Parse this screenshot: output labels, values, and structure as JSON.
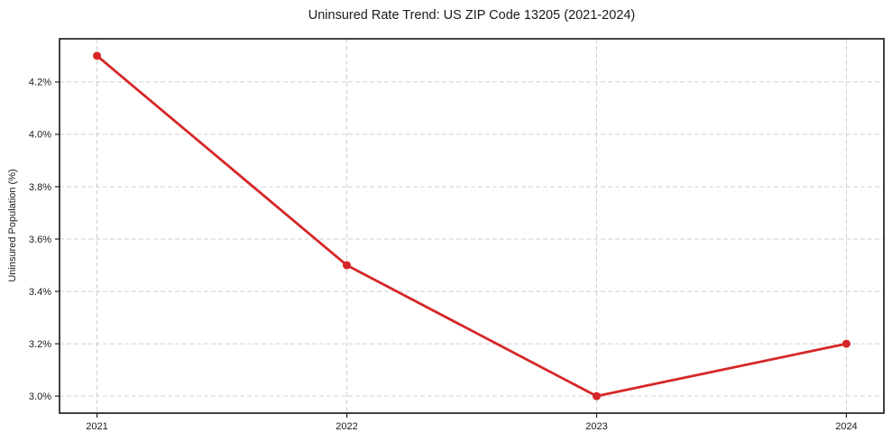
{
  "chart_data": {
    "type": "line",
    "title": "Uninsured Rate Trend: US ZIP Code 13205 (2021-2024)",
    "xlabel": "",
    "ylabel": "Uninsured Population (%)",
    "x": [
      2021,
      2022,
      2023,
      2024
    ],
    "values": [
      4.3,
      3.5,
      3.0,
      3.2
    ],
    "xlim": [
      2020.85,
      2024.15
    ],
    "ylim": [
      2.935,
      4.365
    ],
    "xticks": [
      {
        "value": 2021,
        "label": "2021"
      },
      {
        "value": 2022,
        "label": "2022"
      },
      {
        "value": 2023,
        "label": "2023"
      },
      {
        "value": 2024,
        "label": "2024"
      }
    ],
    "yticks": [
      {
        "value": 3.0,
        "label": "3.0%"
      },
      {
        "value": 3.2,
        "label": "3.2%"
      },
      {
        "value": 3.4,
        "label": "3.4%"
      },
      {
        "value": 3.6,
        "label": "3.6%"
      },
      {
        "value": 3.8,
        "label": "3.8%"
      },
      {
        "value": 4.0,
        "label": "4.0%"
      },
      {
        "value": 4.2,
        "label": "4.2%"
      }
    ],
    "grid": true,
    "grid_style": "dashed",
    "legend_position": "none",
    "line_color": "#d62728",
    "marker": "circle",
    "marker_color": "#d62728",
    "background_color": "#ffffff"
  }
}
